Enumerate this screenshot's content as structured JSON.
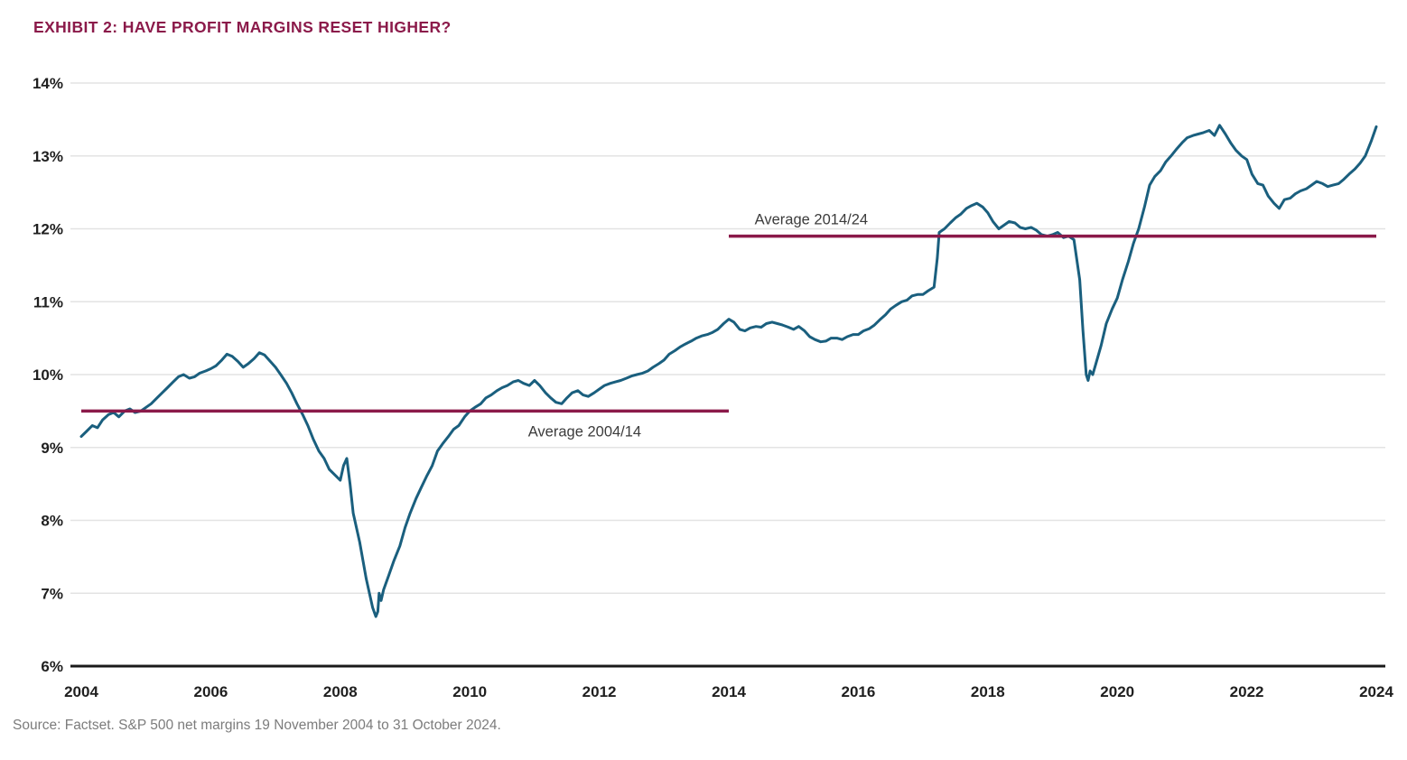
{
  "title": "EXHIBIT 2: HAVE PROFIT MARGINS RESET HIGHER?",
  "source": "Source: Factset. S&P 500 net margins 19 November 2004 to 31 October 2024.",
  "colors": {
    "accent": "#8B1A4A",
    "series": "#1A5F7E",
    "axis_text": "#1f1f1f",
    "grid": "#e3e3e3",
    "axis_line": "#1a1a1a",
    "annotation_text": "#3c3c3c",
    "source_text": "#7c7c7c"
  },
  "chart_data": {
    "type": "line",
    "title": "EXHIBIT 2: HAVE PROFIT MARGINS RESET HIGHER?",
    "xlabel": "",
    "ylabel": "",
    "xlim": [
      2004,
      2024
    ],
    "ylim": [
      6,
      14
    ],
    "x_ticks": [
      2004,
      2006,
      2008,
      2010,
      2012,
      2014,
      2016,
      2018,
      2020,
      2022,
      2024
    ],
    "y_ticks": [
      6,
      7,
      8,
      9,
      10,
      11,
      12,
      13,
      14
    ],
    "y_suffix": "%",
    "grid": "horizontal",
    "legend": "none",
    "reference_lines": [
      {
        "label": "Average 2004/14",
        "value": 9.5,
        "x_start": 2004,
        "x_end": 2014,
        "color": "#8B1A4A",
        "label_position": "below",
        "label_x": 2010.9
      },
      {
        "label": "Average 2014/24",
        "value": 11.9,
        "x_start": 2014,
        "x_end": 2024,
        "color": "#8B1A4A",
        "label_position": "above",
        "label_x": 2014.4
      }
    ],
    "series": [
      {
        "name": "S&P 500 net margin",
        "color": "#1A5F7E",
        "points": [
          [
            2004.0,
            9.15
          ],
          [
            2004.08,
            9.22
          ],
          [
            2004.17,
            9.3
          ],
          [
            2004.25,
            9.27
          ],
          [
            2004.33,
            9.38
          ],
          [
            2004.42,
            9.45
          ],
          [
            2004.5,
            9.48
          ],
          [
            2004.58,
            9.42
          ],
          [
            2004.67,
            9.5
          ],
          [
            2004.75,
            9.53
          ],
          [
            2004.83,
            9.48
          ],
          [
            2004.92,
            9.5
          ],
          [
            2005.0,
            9.55
          ],
          [
            2005.08,
            9.6
          ],
          [
            2005.17,
            9.68
          ],
          [
            2005.25,
            9.75
          ],
          [
            2005.33,
            9.82
          ],
          [
            2005.42,
            9.9
          ],
          [
            2005.5,
            9.97
          ],
          [
            2005.58,
            10.0
          ],
          [
            2005.67,
            9.95
          ],
          [
            2005.75,
            9.97
          ],
          [
            2005.83,
            10.02
          ],
          [
            2005.92,
            10.05
          ],
          [
            2006.0,
            10.08
          ],
          [
            2006.08,
            10.12
          ],
          [
            2006.17,
            10.2
          ],
          [
            2006.25,
            10.28
          ],
          [
            2006.33,
            10.25
          ],
          [
            2006.42,
            10.18
          ],
          [
            2006.5,
            10.1
          ],
          [
            2006.58,
            10.15
          ],
          [
            2006.67,
            10.22
          ],
          [
            2006.75,
            10.3
          ],
          [
            2006.83,
            10.27
          ],
          [
            2006.92,
            10.18
          ],
          [
            2007.0,
            10.1
          ],
          [
            2007.08,
            10.0
          ],
          [
            2007.17,
            9.88
          ],
          [
            2007.25,
            9.75
          ],
          [
            2007.33,
            9.6
          ],
          [
            2007.42,
            9.45
          ],
          [
            2007.5,
            9.3
          ],
          [
            2007.58,
            9.12
          ],
          [
            2007.67,
            8.95
          ],
          [
            2007.75,
            8.85
          ],
          [
            2007.83,
            8.7
          ],
          [
            2007.92,
            8.62
          ],
          [
            2008.0,
            8.55
          ],
          [
            2008.05,
            8.75
          ],
          [
            2008.1,
            8.85
          ],
          [
            2008.15,
            8.5
          ],
          [
            2008.2,
            8.1
          ],
          [
            2008.25,
            7.9
          ],
          [
            2008.3,
            7.7
          ],
          [
            2008.35,
            7.45
          ],
          [
            2008.4,
            7.2
          ],
          [
            2008.45,
            7.0
          ],
          [
            2008.5,
            6.8
          ],
          [
            2008.55,
            6.68
          ],
          [
            2008.58,
            6.75
          ],
          [
            2008.6,
            7.0
          ],
          [
            2008.63,
            6.9
          ],
          [
            2008.67,
            7.05
          ],
          [
            2008.75,
            7.25
          ],
          [
            2008.83,
            7.45
          ],
          [
            2008.92,
            7.65
          ],
          [
            2009.0,
            7.9
          ],
          [
            2009.08,
            8.1
          ],
          [
            2009.17,
            8.3
          ],
          [
            2009.25,
            8.45
          ],
          [
            2009.33,
            8.6
          ],
          [
            2009.42,
            8.75
          ],
          [
            2009.5,
            8.95
          ],
          [
            2009.58,
            9.05
          ],
          [
            2009.67,
            9.15
          ],
          [
            2009.75,
            9.25
          ],
          [
            2009.83,
            9.3
          ],
          [
            2009.92,
            9.42
          ],
          [
            2010.0,
            9.5
          ],
          [
            2010.08,
            9.55
          ],
          [
            2010.17,
            9.6
          ],
          [
            2010.25,
            9.68
          ],
          [
            2010.33,
            9.72
          ],
          [
            2010.42,
            9.78
          ],
          [
            2010.5,
            9.82
          ],
          [
            2010.58,
            9.85
          ],
          [
            2010.67,
            9.9
          ],
          [
            2010.75,
            9.92
          ],
          [
            2010.83,
            9.88
          ],
          [
            2010.92,
            9.85
          ],
          [
            2011.0,
            9.92
          ],
          [
            2011.08,
            9.85
          ],
          [
            2011.17,
            9.75
          ],
          [
            2011.25,
            9.68
          ],
          [
            2011.33,
            9.62
          ],
          [
            2011.42,
            9.6
          ],
          [
            2011.5,
            9.68
          ],
          [
            2011.58,
            9.75
          ],
          [
            2011.67,
            9.78
          ],
          [
            2011.75,
            9.72
          ],
          [
            2011.83,
            9.7
          ],
          [
            2011.92,
            9.75
          ],
          [
            2012.0,
            9.8
          ],
          [
            2012.08,
            9.85
          ],
          [
            2012.17,
            9.88
          ],
          [
            2012.25,
            9.9
          ],
          [
            2012.33,
            9.92
          ],
          [
            2012.42,
            9.95
          ],
          [
            2012.5,
            9.98
          ],
          [
            2012.58,
            10.0
          ],
          [
            2012.67,
            10.02
          ],
          [
            2012.75,
            10.05
          ],
          [
            2012.83,
            10.1
          ],
          [
            2012.92,
            10.15
          ],
          [
            2013.0,
            10.2
          ],
          [
            2013.08,
            10.28
          ],
          [
            2013.17,
            10.33
          ],
          [
            2013.25,
            10.38
          ],
          [
            2013.33,
            10.42
          ],
          [
            2013.42,
            10.46
          ],
          [
            2013.5,
            10.5
          ],
          [
            2013.58,
            10.53
          ],
          [
            2013.67,
            10.55
          ],
          [
            2013.75,
            10.58
          ],
          [
            2013.83,
            10.62
          ],
          [
            2013.92,
            10.7
          ],
          [
            2014.0,
            10.76
          ],
          [
            2014.08,
            10.72
          ],
          [
            2014.17,
            10.62
          ],
          [
            2014.25,
            10.6
          ],
          [
            2014.33,
            10.64
          ],
          [
            2014.42,
            10.66
          ],
          [
            2014.5,
            10.65
          ],
          [
            2014.58,
            10.7
          ],
          [
            2014.67,
            10.72
          ],
          [
            2014.75,
            10.7
          ],
          [
            2014.83,
            10.68
          ],
          [
            2014.92,
            10.65
          ],
          [
            2015.0,
            10.62
          ],
          [
            2015.08,
            10.66
          ],
          [
            2015.17,
            10.6
          ],
          [
            2015.25,
            10.52
          ],
          [
            2015.33,
            10.48
          ],
          [
            2015.42,
            10.45
          ],
          [
            2015.5,
            10.46
          ],
          [
            2015.58,
            10.5
          ],
          [
            2015.67,
            10.5
          ],
          [
            2015.75,
            10.48
          ],
          [
            2015.83,
            10.52
          ],
          [
            2015.92,
            10.55
          ],
          [
            2016.0,
            10.55
          ],
          [
            2016.08,
            10.6
          ],
          [
            2016.17,
            10.63
          ],
          [
            2016.25,
            10.68
          ],
          [
            2016.33,
            10.75
          ],
          [
            2016.42,
            10.82
          ],
          [
            2016.5,
            10.9
          ],
          [
            2016.58,
            10.95
          ],
          [
            2016.67,
            11.0
          ],
          [
            2016.75,
            11.02
          ],
          [
            2016.83,
            11.08
          ],
          [
            2016.92,
            11.1
          ],
          [
            2017.0,
            11.1
          ],
          [
            2017.08,
            11.15
          ],
          [
            2017.17,
            11.2
          ],
          [
            2017.22,
            11.6
          ],
          [
            2017.25,
            11.95
          ],
          [
            2017.33,
            12.0
          ],
          [
            2017.42,
            12.08
          ],
          [
            2017.5,
            12.15
          ],
          [
            2017.58,
            12.2
          ],
          [
            2017.67,
            12.28
          ],
          [
            2017.75,
            12.32
          ],
          [
            2017.83,
            12.35
          ],
          [
            2017.92,
            12.3
          ],
          [
            2018.0,
            12.22
          ],
          [
            2018.08,
            12.1
          ],
          [
            2018.17,
            12.0
          ],
          [
            2018.25,
            12.05
          ],
          [
            2018.33,
            12.1
          ],
          [
            2018.42,
            12.08
          ],
          [
            2018.5,
            12.02
          ],
          [
            2018.58,
            12.0
          ],
          [
            2018.67,
            12.02
          ],
          [
            2018.75,
            11.98
          ],
          [
            2018.83,
            11.92
          ],
          [
            2018.92,
            11.9
          ],
          [
            2019.0,
            11.92
          ],
          [
            2019.08,
            11.95
          ],
          [
            2019.17,
            11.88
          ],
          [
            2019.25,
            11.9
          ],
          [
            2019.33,
            11.85
          ],
          [
            2019.42,
            11.3
          ],
          [
            2019.47,
            10.6
          ],
          [
            2019.52,
            10.0
          ],
          [
            2019.55,
            9.92
          ],
          [
            2019.58,
            10.05
          ],
          [
            2019.62,
            10.0
          ],
          [
            2019.67,
            10.15
          ],
          [
            2019.75,
            10.4
          ],
          [
            2019.83,
            10.7
          ],
          [
            2019.92,
            10.9
          ],
          [
            2020.0,
            11.05
          ],
          [
            2020.08,
            11.3
          ],
          [
            2020.17,
            11.55
          ],
          [
            2020.25,
            11.8
          ],
          [
            2020.33,
            12.0
          ],
          [
            2020.42,
            12.3
          ],
          [
            2020.5,
            12.6
          ],
          [
            2020.58,
            12.72
          ],
          [
            2020.67,
            12.8
          ],
          [
            2020.75,
            12.92
          ],
          [
            2020.83,
            13.0
          ],
          [
            2020.92,
            13.1
          ],
          [
            2021.0,
            13.18
          ],
          [
            2021.08,
            13.25
          ],
          [
            2021.17,
            13.28
          ],
          [
            2021.25,
            13.3
          ],
          [
            2021.33,
            13.32
          ],
          [
            2021.42,
            13.35
          ],
          [
            2021.5,
            13.28
          ],
          [
            2021.58,
            13.42
          ],
          [
            2021.67,
            13.3
          ],
          [
            2021.75,
            13.18
          ],
          [
            2021.83,
            13.08
          ],
          [
            2021.92,
            13.0
          ],
          [
            2022.0,
            12.95
          ],
          [
            2022.08,
            12.75
          ],
          [
            2022.17,
            12.62
          ],
          [
            2022.25,
            12.6
          ],
          [
            2022.33,
            12.45
          ],
          [
            2022.42,
            12.35
          ],
          [
            2022.5,
            12.28
          ],
          [
            2022.58,
            12.4
          ],
          [
            2022.67,
            12.42
          ],
          [
            2022.75,
            12.48
          ],
          [
            2022.83,
            12.52
          ],
          [
            2022.92,
            12.55
          ],
          [
            2023.0,
            12.6
          ],
          [
            2023.08,
            12.65
          ],
          [
            2023.17,
            12.62
          ],
          [
            2023.25,
            12.58
          ],
          [
            2023.33,
            12.6
          ],
          [
            2023.42,
            12.62
          ],
          [
            2023.5,
            12.68
          ],
          [
            2023.58,
            12.75
          ],
          [
            2023.67,
            12.82
          ],
          [
            2023.75,
            12.9
          ],
          [
            2023.83,
            13.0
          ],
          [
            2023.92,
            13.2
          ],
          [
            2024.0,
            13.4
          ]
        ]
      }
    ]
  }
}
